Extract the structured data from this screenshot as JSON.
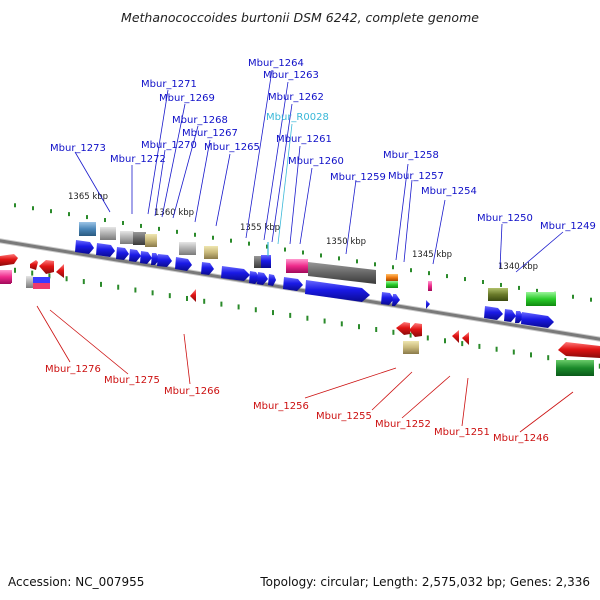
{
  "title": "Methanococcoides burtonii DSM 6242, complete genome",
  "footer": {
    "accession": "Accession: NC_007955",
    "summary": "Topology: circular; Length: 2,575,032 bp; Genes: 2,336"
  },
  "scale_labels": [
    "1365 kbp",
    "1360 kbp",
    "1355 kbp",
    "1350 kbp",
    "1345 kbp",
    "1340 kbp"
  ],
  "top_labels": [
    "Mbur_1264",
    "Mbur_1263",
    "Mbur_1271",
    "Mbur_1262",
    "Mbur_1269",
    "Mbur_1268",
    "Mbur_1267",
    "Mbur_1261",
    "Mbur_1273",
    "Mbur_1270",
    "Mbur_1265",
    "Mbur_1272",
    "Mbur_1260",
    "Mbur_1259",
    "Mbur_1258",
    "Mbur_1257",
    "Mbur_1254",
    "Mbur_1250",
    "Mbur_1249"
  ],
  "rna_label": "Mbur_R0028",
  "bottom_labels": [
    "Mbur_1276",
    "Mbur_1275",
    "Mbur_1266",
    "Mbur_1256",
    "Mbur_1255",
    "Mbur_1252",
    "Mbur_1251",
    "Mbur_1246"
  ],
  "colors": {
    "forward_cds": "#1a1ae6",
    "reverse_cds": "#e01414",
    "rna_label": "#3ab8d8",
    "backbone": "#8a8a8a",
    "tick": "#2a8a2a"
  }
}
